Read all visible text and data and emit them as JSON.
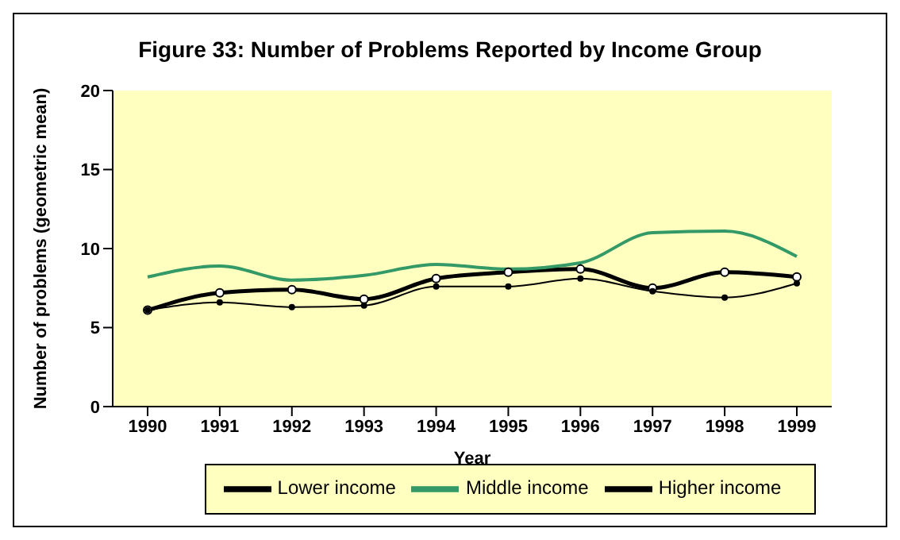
{
  "chart_data": {
    "type": "line",
    "title": "Figure 33: Number of Problems Reported by Income Group",
    "xlabel": "Year",
    "ylabel": "Number of problems (geometric mean)",
    "categories": [
      "1990",
      "1991",
      "1992",
      "1993",
      "1994",
      "1995",
      "1996",
      "1997",
      "1998",
      "1999"
    ],
    "series": [
      {
        "name": "Lower income",
        "color": "#000000",
        "marker": "circle",
        "values": [
          6.1,
          7.2,
          7.4,
          6.8,
          8.1,
          8.5,
          8.7,
          7.5,
          8.5,
          8.2
        ]
      },
      {
        "name": "Middle income",
        "color": "#339966",
        "marker": "none",
        "values": [
          8.2,
          8.9,
          8.0,
          8.3,
          9.0,
          8.7,
          9.1,
          11.0,
          11.1,
          9.5
        ]
      },
      {
        "name": "Higher income",
        "color": "#000000",
        "marker": "circle",
        "values": [
          6.1,
          6.6,
          6.3,
          6.4,
          7.6,
          7.6,
          8.1,
          7.3,
          6.9,
          7.8
        ]
      }
    ],
    "ylim": [
      0,
      20
    ],
    "yticks": [
      0,
      5,
      10,
      15,
      20
    ],
    "grid": false,
    "legend": "bottom"
  }
}
